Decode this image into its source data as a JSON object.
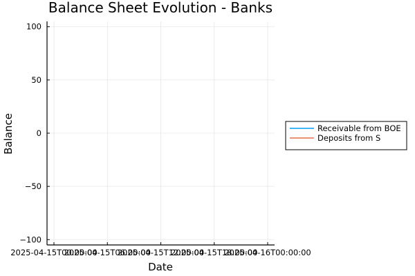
{
  "chart_data": {
    "type": "line",
    "title": "Balance Sheet Evolution - Banks",
    "xlabel": "Date",
    "ylabel": "Balance",
    "x_ticks": [
      "2025-04-15T00:00:00",
      "2025-04-15T06:00:00",
      "2025-04-15T12:00:00",
      "2025-04-15T18:00:00",
      "2025-04-16T00:00:00"
    ],
    "y_ticks": [
      100,
      50,
      0,
      -50,
      -100
    ],
    "y_tick_labels": [
      "100",
      "50",
      "0",
      "−50",
      "−100"
    ],
    "ylim": [
      -105,
      105
    ],
    "grid": true,
    "legend_position": "outside-right",
    "series": [
      {
        "name": "Receivable from BOE",
        "color": "#009AFA",
        "values": []
      },
      {
        "name": "Deposits from S",
        "color": "#E26F46",
        "values": []
      }
    ]
  }
}
